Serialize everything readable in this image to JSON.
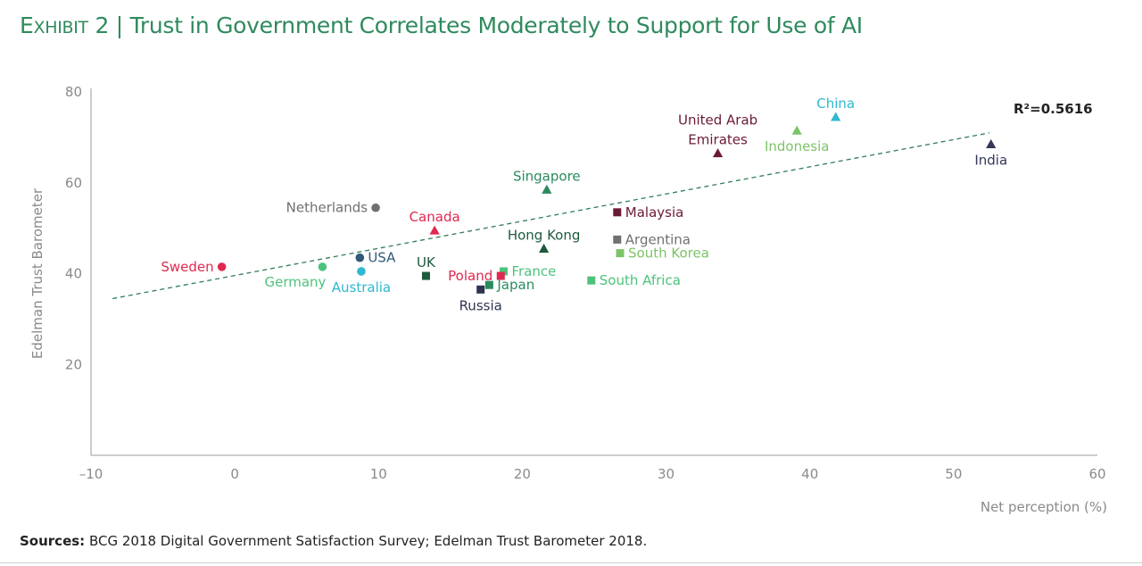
{
  "title": {
    "exhibit_initial": "E",
    "exhibit_rest": "XHIBIT",
    "exhibit_number": "2",
    "separator": "|",
    "text": "Trust in Government Correlates Moderately to Support for Use of AI"
  },
  "source": {
    "label": "Sources:",
    "text": "BCG 2018 Digital Government Satisfaction Survey; Edelman Trust Barometer 2018."
  },
  "chart_data": {
    "type": "scatter",
    "xlabel": "Net perception (%)",
    "ylabel": "Edelman Trust Barometer",
    "xlim": [
      -10,
      60
    ],
    "ylim": [
      0,
      80
    ],
    "xticks": [
      -10,
      0,
      10,
      20,
      30,
      40,
      50,
      60
    ],
    "xtick_labels": [
      "–10",
      "0",
      "10",
      "20",
      "30",
      "40",
      "50",
      "60"
    ],
    "yticks": [
      20,
      40,
      60,
      80
    ],
    "ytick_labels": [
      "20",
      "40",
      "60",
      "80"
    ],
    "grid": false,
    "legend": "none",
    "trendline": {
      "style": "dashed",
      "x": [
        -8.5,
        52.5
      ],
      "y": [
        34.5,
        71
      ],
      "color": "#2f7d55"
    },
    "r2_label": "R²=0.5616",
    "points": [
      {
        "label": "China",
        "x": 41.8,
        "y": 74.5,
        "marker": "triangle",
        "color": "#2fb8d0",
        "label_pos": "above"
      },
      {
        "label": "Indonesia",
        "x": 39.1,
        "y": 71.5,
        "marker": "triangle",
        "color": "#7cc466",
        "label_pos": "below"
      },
      {
        "label": "India",
        "x": 52.6,
        "y": 68.5,
        "marker": "triangle",
        "color": "#34375a",
        "label_pos": "below"
      },
      {
        "label": "United Arab Emirates",
        "label_lines": [
          "United Arab",
          "Emirates"
        ],
        "x": 33.6,
        "y": 66.5,
        "marker": "triangle",
        "color": "#6b1a36",
        "label_pos": "above"
      },
      {
        "label": "Singapore",
        "x": 21.7,
        "y": 58.5,
        "marker": "triangle",
        "color": "#2a8a5e",
        "label_pos": "above"
      },
      {
        "label": "Netherlands",
        "x": 9.8,
        "y": 54.5,
        "marker": "circle",
        "color": "#707070",
        "label_pos": "left"
      },
      {
        "label": "Malaysia",
        "x": 26.6,
        "y": 53.5,
        "marker": "square",
        "color": "#6b1a36",
        "label_pos": "right"
      },
      {
        "label": "Canada",
        "x": 13.9,
        "y": 49.5,
        "marker": "triangle",
        "color": "#e0284f",
        "label_pos": "above"
      },
      {
        "label": "Argentina",
        "x": 26.6,
        "y": 47.5,
        "marker": "square",
        "color": "#707070",
        "label_pos": "right"
      },
      {
        "label": "Hong Kong",
        "x": 21.5,
        "y": 45.5,
        "marker": "triangle",
        "color": "#1d5a3c",
        "label_pos": "above"
      },
      {
        "label": "South Korea",
        "x": 26.8,
        "y": 44.5,
        "marker": "square",
        "color": "#7cc466",
        "label_pos": "right"
      },
      {
        "label": "USA",
        "x": 8.7,
        "y": 43.5,
        "marker": "circle",
        "color": "#2f5a78",
        "label_pos": "right"
      },
      {
        "label": "Sweden",
        "x": -0.9,
        "y": 41.5,
        "marker": "circle",
        "color": "#e0284f",
        "label_pos": "left"
      },
      {
        "label": "Germany",
        "x": 6.1,
        "y": 41.5,
        "marker": "circle",
        "color": "#4ec27c",
        "label_pos": "below-left"
      },
      {
        "label": "France",
        "x": 18.7,
        "y": 40.5,
        "marker": "square",
        "color": "#4ec27c",
        "label_pos": "right"
      },
      {
        "label": "Australia",
        "x": 8.8,
        "y": 40.5,
        "marker": "circle",
        "color": "#2fb8d0",
        "label_pos": "below"
      },
      {
        "label": "Poland",
        "x": 18.5,
        "y": 39.5,
        "marker": "square",
        "color": "#e0284f",
        "label_pos": "left"
      },
      {
        "label": "UK",
        "x": 13.3,
        "y": 39.5,
        "marker": "square",
        "color": "#1d5a3c",
        "label_pos": "above"
      },
      {
        "label": "South Africa",
        "x": 24.8,
        "y": 38.5,
        "marker": "square",
        "color": "#4ec27c",
        "label_pos": "right"
      },
      {
        "label": "Japan",
        "x": 17.7,
        "y": 37.5,
        "marker": "square",
        "color": "#2a8a5e",
        "label_pos": "right"
      },
      {
        "label": "Russia",
        "x": 17.1,
        "y": 36.5,
        "marker": "square",
        "color": "#2f3550",
        "label_pos": "below"
      }
    ]
  }
}
